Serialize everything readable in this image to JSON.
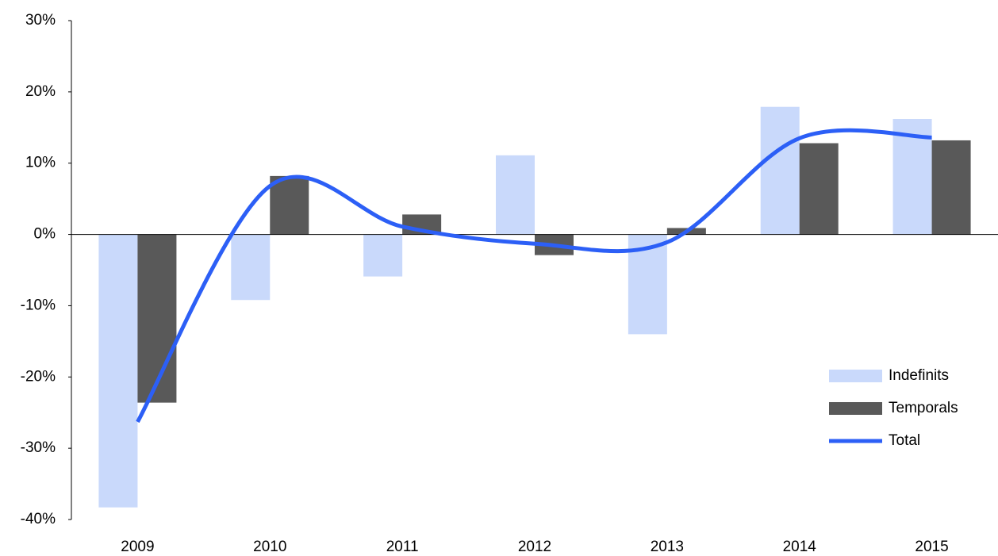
{
  "chart_data": {
    "type": "bar",
    "categories": [
      "2009",
      "2010",
      "2011",
      "2012",
      "2013",
      "2014",
      "2015"
    ],
    "series": [
      {
        "name": "Indefinits",
        "color": "#c9d9fb",
        "values": [
          -38.3,
          -9.2,
          -5.9,
          11.1,
          -14.0,
          17.9,
          16.2
        ]
      },
      {
        "name": "Temporals",
        "color": "#595959",
        "values": [
          -23.6,
          8.2,
          2.8,
          -2.9,
          0.9,
          12.8,
          13.2
        ]
      },
      {
        "name": "Total",
        "color": "#2c5ff6",
        "type": "line",
        "smooth": true,
        "values": [
          -26.3,
          6.8,
          1.1,
          -1.3,
          -1.1,
          13.5,
          13.6
        ]
      }
    ],
    "ylim": [
      -40,
      30
    ],
    "yticks": [
      {
        "value": -40,
        "label": "-40%"
      },
      {
        "value": -30,
        "label": "-30%"
      },
      {
        "value": -20,
        "label": "-20%"
      },
      {
        "value": -10,
        "label": "-10%"
      },
      {
        "value": 0,
        "label": "0%"
      },
      {
        "value": 10,
        "label": "10%"
      },
      {
        "value": 20,
        "label": "20%"
      },
      {
        "value": 30,
        "label": "30%"
      }
    ],
    "legend": "right"
  }
}
